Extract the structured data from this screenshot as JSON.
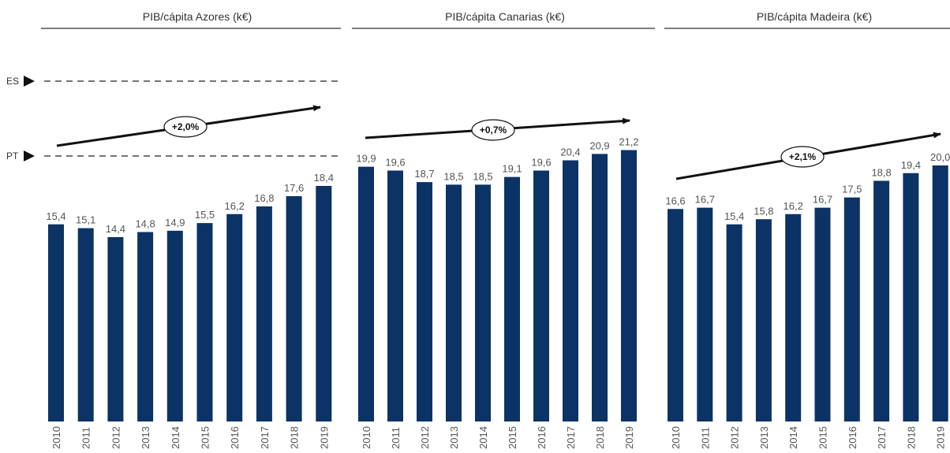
{
  "chart_data": [
    {
      "type": "bar",
      "title": "PIB/cápita Azores (k€)",
      "categories": [
        "2010",
        "2011",
        "2012",
        "2013",
        "2014",
        "2015",
        "2016",
        "2017",
        "2018",
        "2019"
      ],
      "values": [
        15.4,
        15.1,
        14.4,
        14.8,
        14.9,
        15.5,
        16.2,
        16.8,
        17.6,
        18.4
      ],
      "labels": [
        "15,4",
        "15,1",
        "14,4",
        "14,8",
        "14,9",
        "15,5",
        "16,2",
        "16,8",
        "17,6",
        "18,4"
      ],
      "cagr": "+2,0%",
      "reference_lines": [
        {
          "label": "ES",
          "style": "dashed"
        },
        {
          "label": "PT",
          "style": "dashed",
          "value": 19.9
        }
      ]
    },
    {
      "type": "bar",
      "title": "PIB/cápita Canarias (k€)",
      "categories": [
        "2010",
        "2011",
        "2012",
        "2013",
        "2014",
        "2015",
        "2016",
        "2017",
        "2018",
        "2019"
      ],
      "values": [
        19.9,
        19.6,
        18.7,
        18.5,
        18.5,
        19.1,
        19.6,
        20.4,
        20.9,
        21.2
      ],
      "labels": [
        "19,9",
        "19,6",
        "18,7",
        "18,5",
        "18,5",
        "19,1",
        "19,6",
        "20,4",
        "20,9",
        "21,2"
      ],
      "cagr": "+0,7%"
    },
    {
      "type": "bar",
      "title": "PIB/cápita Madeira (k€)",
      "categories": [
        "2010",
        "2011",
        "2012",
        "2013",
        "2014",
        "2015",
        "2016",
        "2017",
        "2018",
        "2019"
      ],
      "values": [
        16.6,
        16.7,
        15.4,
        15.8,
        16.2,
        16.7,
        17.5,
        18.8,
        19.4,
        20.0
      ],
      "labels": [
        "16,6",
        "16,7",
        "15,4",
        "15,8",
        "16,2",
        "16,7",
        "17,5",
        "18,8",
        "19,4",
        "20,0"
      ],
      "cagr": "+2,1%"
    }
  ],
  "colors": {
    "bar": "#0b3366",
    "text": "#555555",
    "title": "#333333",
    "line": "#111111"
  }
}
